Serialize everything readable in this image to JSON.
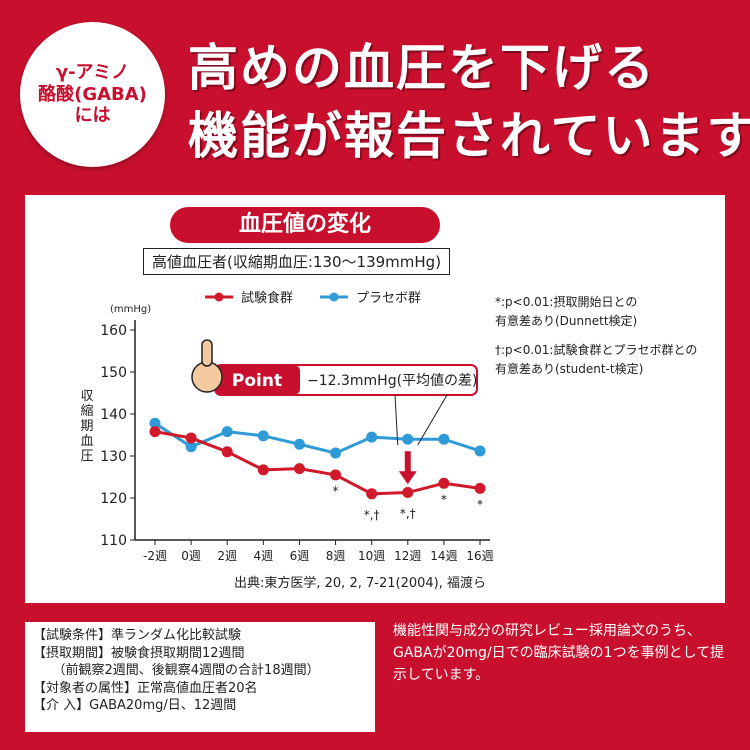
{
  "badge": {
    "line1": "γ-アミノ",
    "line2": "酪酸(GABA)",
    "line3": "には"
  },
  "headline": {
    "line1": "高めの血圧を下げる",
    "line2": "機能が報告されています"
  },
  "colors": {
    "brand_red": "#c8102e",
    "test_series": "#d0192b",
    "placebo_series": "#2e9ad6"
  },
  "panel": {
    "chart_title": "血圧値の変化",
    "subtitle": "高値血圧者(収縮期血圧:130〜139mmHg)",
    "notes": [
      "*:p<0.01:摂取開始日との",
      "有意差あり(Dunnett検定)",
      "†:p<0.01:試験食群とプラセボ群との",
      "有意差あり(student-t検定)"
    ],
    "source": "出典:東方医学, 20, 2, 7-21(2004), 福渡ら",
    "point_label": "Point",
    "point_text": "−12.3mmHg(平均値の差)"
  },
  "chart_data": {
    "type": "line",
    "title": "血圧値の変化",
    "subtitle": "高値血圧者(収縮期血圧:130〜139mmHg)",
    "unit": "(mmHg)",
    "ylabel": "収縮期血圧",
    "ylim": [
      110,
      160
    ],
    "yticks": [
      110,
      120,
      130,
      140,
      150,
      160
    ],
    "categories": [
      "-2週",
      "0週",
      "2週",
      "4週",
      "6週",
      "8週",
      "10週",
      "12週",
      "14週",
      "16週"
    ],
    "series": [
      {
        "name": "試験食群",
        "values": [
          135.8,
          134.3,
          131.0,
          126.7,
          127.0,
          125.5,
          121.0,
          121.3,
          123.5,
          122.3
        ],
        "marks": [
          "",
          "",
          "",
          "",
          "",
          "*",
          "*,†",
          "*,†",
          "*",
          "*"
        ]
      },
      {
        "name": "プラセボ群",
        "values": [
          137.8,
          132.2,
          135.8,
          134.8,
          132.8,
          130.7,
          134.5,
          134.0,
          134.0,
          131.2
        ],
        "marks": [
          "",
          "",
          "",
          "",
          "",
          "",
          "",
          "",
          "",
          ""
        ]
      }
    ],
    "legend": "top",
    "grid": false
  },
  "conditions": [
    "【試験条件】準ランダム化比較試験",
    "【摂取期間】被験食摂取期間12週間",
    "　　（前観察2週間、後観察4週間の合計18週間）",
    "【対象者の属性】正常高値血圧者20名",
    "【介 入】GABA20mg/日、12週間"
  ],
  "description": "機能性関与成分の研究レビュー採用論文のうち、GABAが20mg/日での臨床試験の1つを事例として提示しています。"
}
